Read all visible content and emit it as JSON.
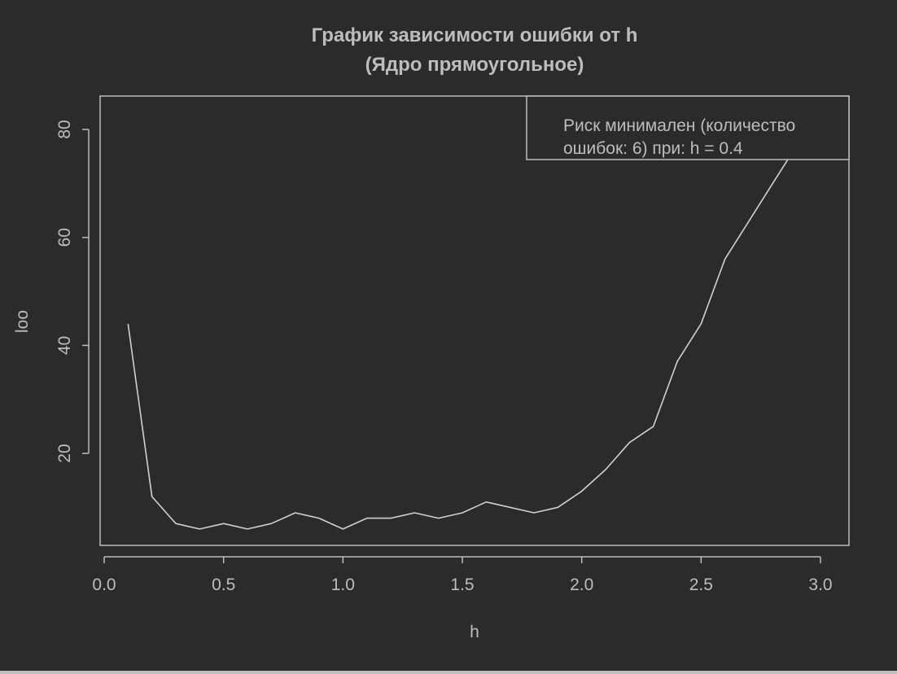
{
  "chart_data": {
    "type": "line",
    "title": "График зависимости ошибки от h",
    "subtitle": "(Ядро прямоугольное)",
    "xlabel": "h",
    "ylabel": "loo",
    "xlim": [
      0.0,
      3.1
    ],
    "ylim": [
      2.5,
      86
    ],
    "xticks": [
      0.0,
      0.5,
      1.0,
      1.5,
      2.0,
      2.5,
      3.0
    ],
    "xtick_labels": [
      "0.0",
      "0.5",
      "1.0",
      "1.5",
      "2.0",
      "2.5",
      "3.0"
    ],
    "yticks": [
      20,
      40,
      60,
      80
    ],
    "ytick_labels": [
      "20",
      "40",
      "60",
      "80"
    ],
    "grid": false,
    "legend_position": "top-right",
    "legend_lines": [
      "Риск минимален (количество",
      "ошибок: 6) при: h = 0.4"
    ],
    "series": [
      {
        "x": [
          0.1,
          0.2,
          0.3,
          0.4,
          0.5,
          0.6,
          0.7,
          0.8,
          0.9,
          1.0,
          1.1,
          1.2,
          1.3,
          1.4,
          1.5,
          1.6,
          1.7,
          1.8,
          1.9,
          2.0,
          2.1,
          2.2,
          2.3,
          2.4,
          2.5,
          2.6,
          2.7,
          2.8,
          2.9,
          3.0
        ],
        "values": [
          44,
          12,
          7,
          6,
          7,
          6,
          7,
          9,
          8,
          6,
          8,
          8,
          9,
          8,
          9,
          11,
          10,
          9,
          10,
          13,
          17,
          22,
          25,
          37,
          44,
          56,
          63,
          70,
          77,
          84
        ]
      }
    ],
    "colors": {
      "background": "#2b2b2b",
      "foreground": "#bdbdbd",
      "line": "#d0d0d0"
    }
  }
}
